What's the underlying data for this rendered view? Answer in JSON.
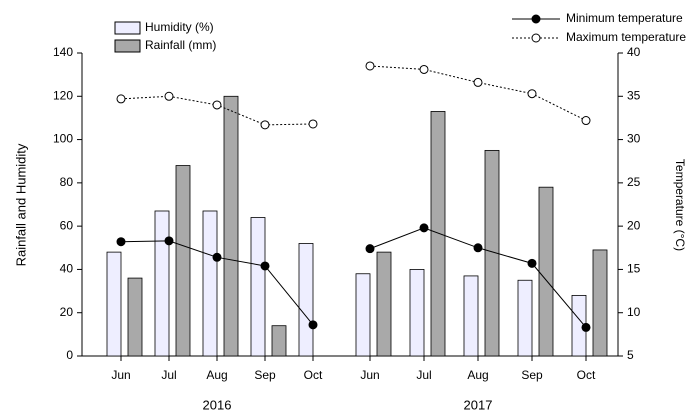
{
  "chart_data": {
    "type": "bar-line",
    "categories": [
      "Jun",
      "Jul",
      "Aug",
      "Sep",
      "Oct",
      "Jun",
      "Jul",
      "Aug",
      "Sep",
      "Oct"
    ],
    "group_labels": [
      "2016",
      "2017"
    ],
    "ylabel": "Rainfall and Humidity",
    "y2label": "Temperature (°C)",
    "ylim": [
      0,
      140
    ],
    "yticks": [
      0,
      20,
      40,
      60,
      80,
      100,
      120,
      140
    ],
    "y2lim": [
      5,
      40
    ],
    "y2ticks": [
      5,
      10,
      15,
      20,
      25,
      30,
      35,
      40
    ],
    "series": [
      {
        "name": "Humidity (%)",
        "kind": "bar",
        "color": "#eeeeff",
        "values": [
          48,
          67,
          67,
          64,
          52,
          38,
          40,
          37,
          35,
          28
        ]
      },
      {
        "name": "Rainfall (mm)",
        "kind": "bar",
        "color": "#a9a9a9",
        "values": [
          36,
          88,
          120,
          14,
          0,
          48,
          113,
          95,
          78,
          49
        ]
      },
      {
        "name": "Minimum temperature",
        "kind": "line",
        "axis": "y2",
        "color": "#000000",
        "marker": "filled",
        "values": [
          18.2,
          18.3,
          16.4,
          15.4,
          8.6,
          17.4,
          19.8,
          17.5,
          15.7,
          8.3
        ]
      },
      {
        "name": "Maximum temperature",
        "kind": "line",
        "axis": "y2",
        "color": "#000000",
        "marker": "open",
        "dashed": true,
        "values": [
          34.7,
          35.0,
          34.0,
          31.7,
          31.8,
          38.5,
          38.1,
          36.6,
          35.3,
          32.2
        ]
      }
    ]
  }
}
